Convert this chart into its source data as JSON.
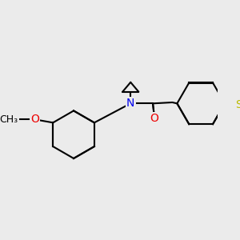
{
  "background_color": "#ebebeb",
  "atom_colors": {
    "N": "#0000ee",
    "O": "#ee0000",
    "S": "#bbbb00",
    "C": "#000000"
  },
  "bond_lw": 1.5,
  "font_size": 10,
  "dbo": 0.018
}
